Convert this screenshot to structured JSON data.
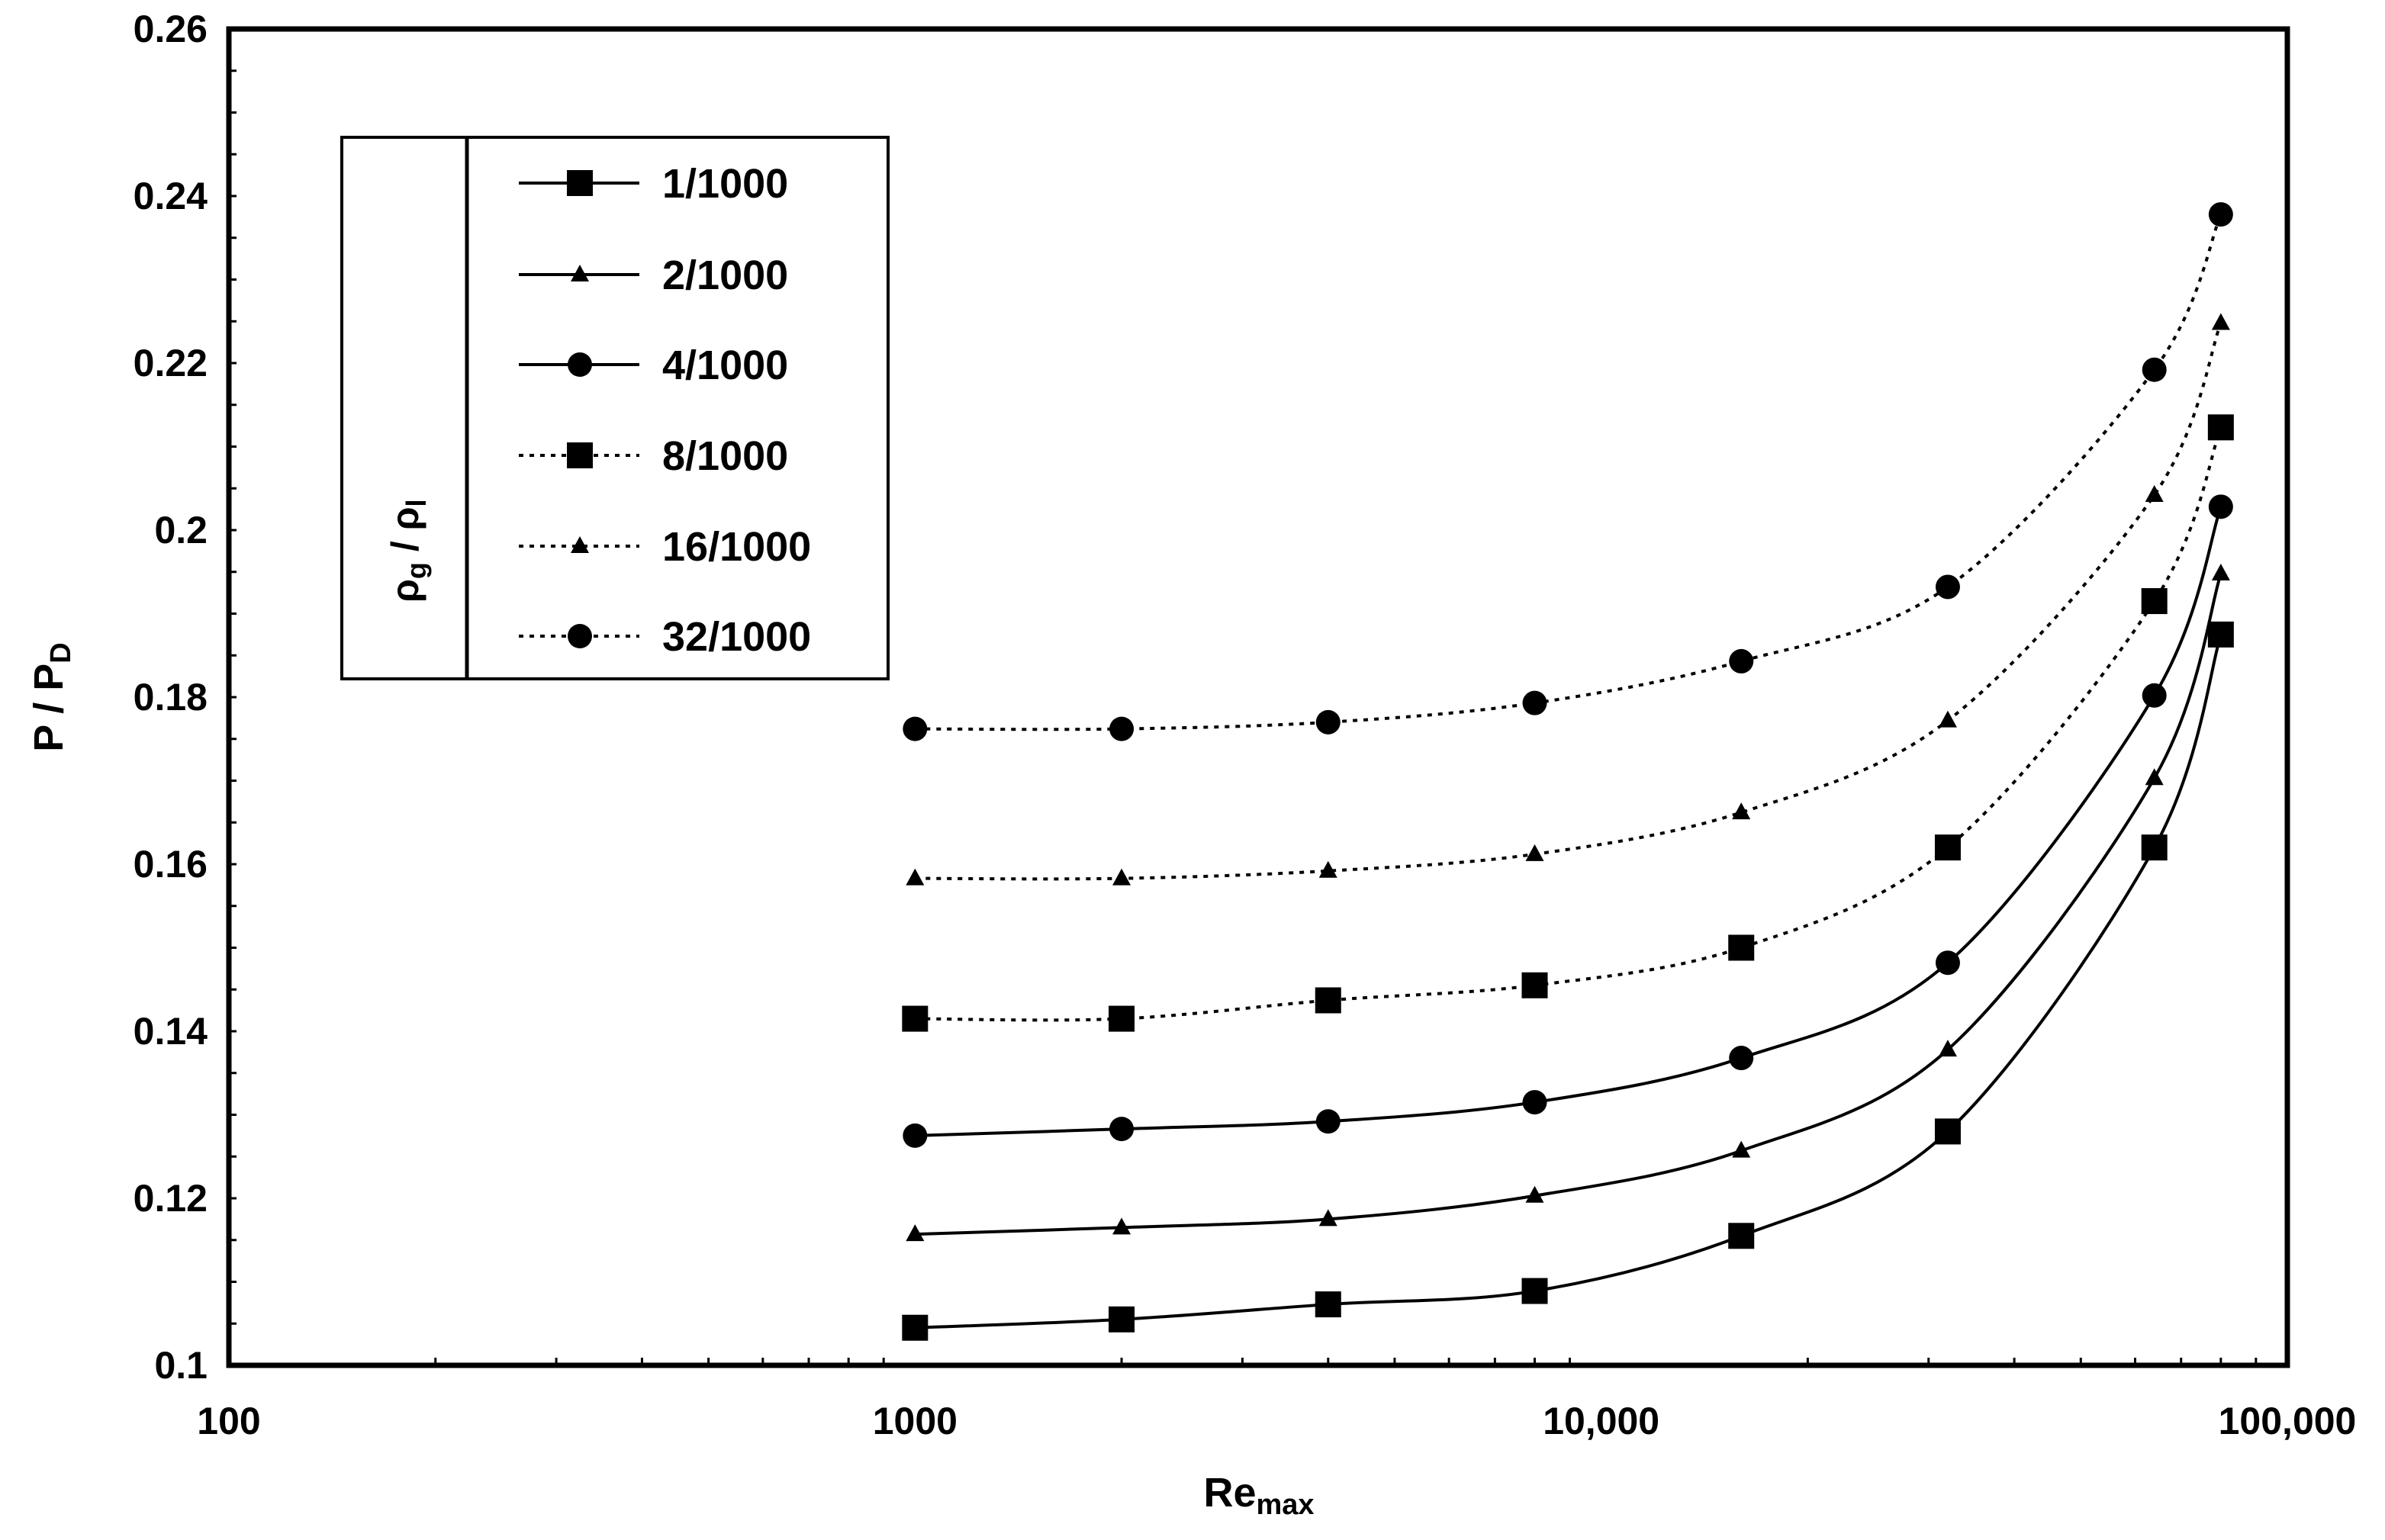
{
  "chart_data": {
    "type": "line",
    "xlabel": "Re",
    "xlabel_sub": "max",
    "ylabel": "P / P",
    "ylabel_sub": "D",
    "x_scale": "log",
    "xlim": [
      100,
      100000
    ],
    "ylim": [
      0.1,
      0.26
    ],
    "x_ticks": [
      {
        "value": 100,
        "label": "100"
      },
      {
        "value": 1000,
        "label": "1000"
      },
      {
        "value": 10000,
        "label": "10,000"
      },
      {
        "value": 100000,
        "label": "100,000"
      }
    ],
    "y_ticks": [
      {
        "value": 0.1,
        "label": "0.1"
      },
      {
        "value": 0.12,
        "label": "0.12"
      },
      {
        "value": 0.14,
        "label": "0.14"
      },
      {
        "value": 0.16,
        "label": "0.16"
      },
      {
        "value": 0.18,
        "label": "0.18"
      },
      {
        "value": 0.2,
        "label": "0.2"
      },
      {
        "value": 0.22,
        "label": "0.22"
      },
      {
        "value": 0.24,
        "label": "0.24"
      },
      {
        "value": 0.26,
        "label": "0.26"
      }
    ],
    "grid": false,
    "legend": {
      "placement": "top-left",
      "title_main": "ρ",
      "title_sub1": "g",
      "title_mid": " / ρ",
      "title_sub2": "l"
    },
    "series": [
      {
        "name": "1/1000",
        "marker": "square",
        "line": "solid",
        "x": [
          1000,
          2000,
          4000,
          8000,
          16000,
          32000,
          64000,
          80000
        ],
        "y": [
          0.1045,
          0.1055,
          0.1073,
          0.1089,
          0.1155,
          0.128,
          0.162,
          0.1875
        ]
      },
      {
        "name": "2/1000",
        "marker": "triangle",
        "line": "solid",
        "x": [
          1000,
          2000,
          4000,
          8000,
          16000,
          32000,
          64000,
          80000
        ],
        "y": [
          0.1157,
          0.1165,
          0.1175,
          0.1203,
          0.1257,
          0.1378,
          0.1703,
          0.1948
        ]
      },
      {
        "name": "4/1000",
        "marker": "circle",
        "line": "solid",
        "x": [
          1000,
          2000,
          4000,
          8000,
          16000,
          32000,
          64000,
          80000
        ],
        "y": [
          0.1275,
          0.1283,
          0.1292,
          0.1315,
          0.1368,
          0.1482,
          0.1802,
          0.2028
        ]
      },
      {
        "name": "8/1000",
        "marker": "square",
        "line": "dotted",
        "x": [
          1000,
          2000,
          4000,
          8000,
          16000,
          32000,
          64000,
          80000
        ],
        "y": [
          0.1415,
          0.1415,
          0.1437,
          0.1455,
          0.15,
          0.162,
          0.1915,
          0.2123
        ]
      },
      {
        "name": "16/1000",
        "marker": "triangle",
        "line": "dotted",
        "x": [
          1000,
          2000,
          4000,
          8000,
          16000,
          32000,
          64000,
          80000
        ],
        "y": [
          0.1583,
          0.1583,
          0.1592,
          0.1612,
          0.1662,
          0.1772,
          0.2042,
          0.2248
        ]
      },
      {
        "name": "32/1000",
        "marker": "circle",
        "line": "dotted",
        "x": [
          1000,
          2000,
          4000,
          8000,
          16000,
          32000,
          64000,
          80000
        ],
        "y": [
          0.1762,
          0.1762,
          0.177,
          0.1793,
          0.1843,
          0.1932,
          0.2192,
          0.2378
        ]
      }
    ],
    "colors": {
      "line": "#000000",
      "background": "#ffffff"
    }
  }
}
